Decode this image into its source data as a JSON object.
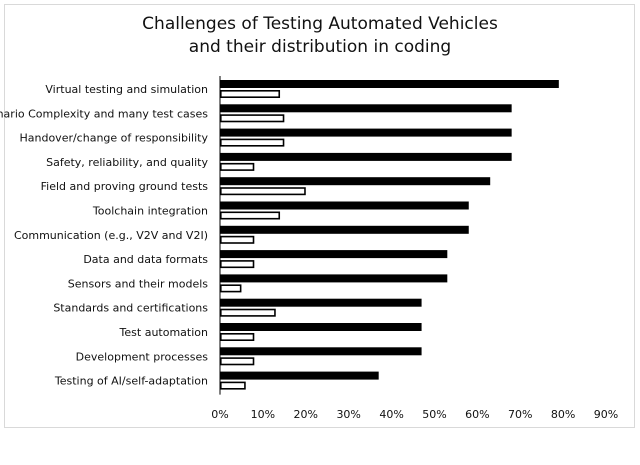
{
  "chart_data": {
    "type": "bar",
    "orientation": "horizontal",
    "title_line1": "Challenges of Testing Automated Vehicles",
    "title_line2": "and their distribution in coding",
    "categories": [
      "Virtual testing and simulation",
      "Scenario Complexity and many test cases",
      "Handover/change of responsibility",
      "Safety, reliability, and quality",
      "Field and proving ground tests",
      "Toolchain integration",
      "Communication (e.g., V2V and V2I)",
      "Data and data formats",
      "Sensors and their models",
      "Standards and certifications",
      "Test automation",
      "Development processes",
      "Testing of AI/self-adaptation"
    ],
    "series": [
      {
        "values": [
          79,
          68,
          68,
          68,
          63,
          58,
          58,
          53,
          53,
          47,
          47,
          47,
          37
        ],
        "color": "#000000"
      },
      {
        "values": [
          14,
          15,
          15,
          8,
          20,
          14,
          8,
          8,
          5,
          13,
          8,
          8,
          6
        ],
        "color": "#ffffff",
        "stroke": "#000000"
      }
    ],
    "x_ticks": [
      "0%",
      "10%",
      "20%",
      "30%",
      "40%",
      "50%",
      "60%",
      "70%",
      "80%",
      "90%"
    ],
    "xlim": [
      0,
      90
    ],
    "grid": false,
    "legend": "none"
  }
}
